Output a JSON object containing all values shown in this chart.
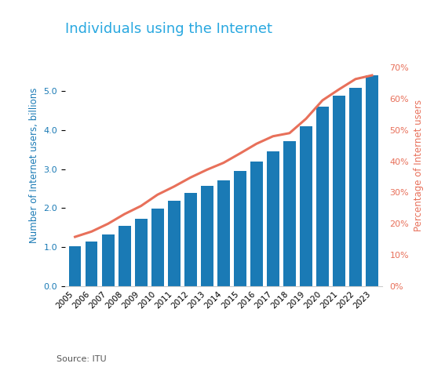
{
  "years": [
    2005,
    2006,
    2007,
    2008,
    2009,
    2010,
    2011,
    2012,
    2013,
    2014,
    2015,
    2016,
    2017,
    2018,
    2019,
    2020,
    2021,
    2022,
    2023
  ],
  "users_billions": [
    1.02,
    1.15,
    1.32,
    1.55,
    1.73,
    1.99,
    2.18,
    2.38,
    2.57,
    2.72,
    2.95,
    3.19,
    3.45,
    3.72,
    4.1,
    4.6,
    4.88,
    5.07,
    5.4
  ],
  "pct_population": [
    15.8,
    17.5,
    20.0,
    23.1,
    25.7,
    29.3,
    31.9,
    34.8,
    37.3,
    39.5,
    42.5,
    45.6,
    48.0,
    49.0,
    53.6,
    59.5,
    63.0,
    66.3,
    67.5
  ],
  "bar_color": "#1a7ab5",
  "line_color": "#e8705a",
  "title": "Individuals using the Internet",
  "title_color": "#29a8e0",
  "ylabel_left": "Number of Internet users, billions",
  "ylabel_right": "Percentage of Internet users",
  "ylabel_left_color": "#1a7ab5",
  "ylabel_right_color": "#e8705a",
  "ylim_left": [
    0,
    6.2
  ],
  "ylim_right": [
    0,
    77.5
  ],
  "yticks_left": [
    0.0,
    1.0,
    2.0,
    3.0,
    4.0,
    5.0
  ],
  "yticks_right": [
    0,
    10,
    20,
    30,
    40,
    50,
    60,
    70
  ],
  "source_text": "Source: ITU",
  "background_color": "#ffffff"
}
